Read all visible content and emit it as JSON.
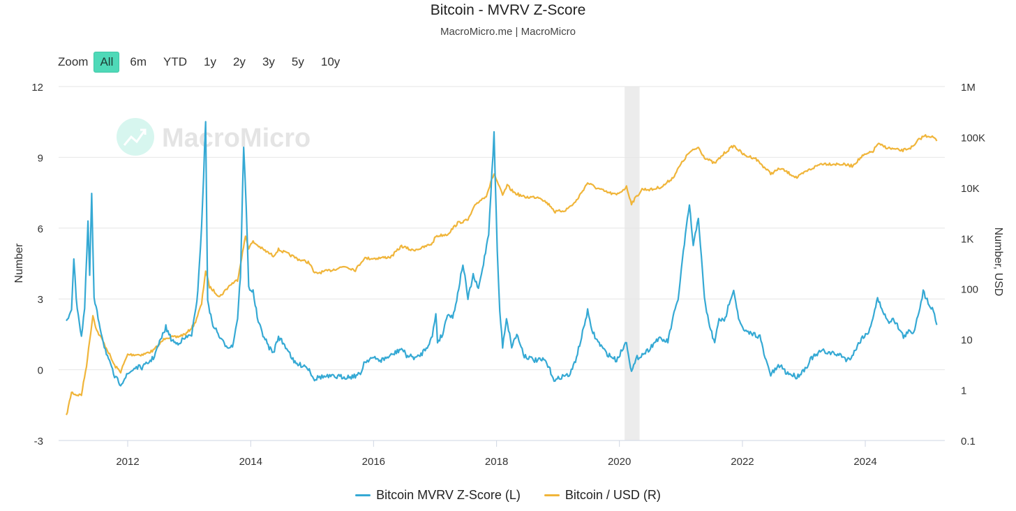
{
  "title": "Bitcoin - MVRV Z-Score",
  "subtitle": "MacroMicro.me | MacroMicro",
  "zoom": {
    "label": "Zoom",
    "buttons": [
      "All",
      "6m",
      "YTD",
      "1y",
      "2y",
      "3y",
      "5y",
      "10y"
    ],
    "active": "All"
  },
  "watermark": "MacroMicro",
  "colors": {
    "mvrv": "#35a9d4",
    "price": "#f0b53a",
    "grid": "#e6e6e6",
    "zoom_active": "#4fd9b8",
    "band": "#ececec"
  },
  "chart_data": {
    "type": "line",
    "x_ticks": [
      "2012",
      "2014",
      "2016",
      "2018",
      "2020",
      "2022",
      "2024"
    ],
    "y_left": {
      "label": "Number",
      "ticks": [
        "12",
        "9",
        "6",
        "3",
        "0",
        "-3"
      ],
      "range": [
        -3,
        12
      ]
    },
    "y_right": {
      "label": "Number, USD",
      "scale": "log",
      "ticks": [
        "1M",
        "100K",
        "10K",
        "1K",
        "100",
        "10",
        "1",
        "0.1"
      ],
      "range": [
        0.1,
        1000000
      ]
    },
    "shaded_band": [
      "2020-02-01",
      "2020-04-30"
    ],
    "grid": true,
    "legend_position": "bottom",
    "series": [
      {
        "name": "Bitcoin MVRV Z-Score (L)",
        "axis": "left",
        "points": [
          [
            "2011-01-01",
            2.0
          ],
          [
            "2011-02-01",
            2.6
          ],
          [
            "2011-02-15",
            4.7
          ],
          [
            "2011-03-01",
            3.0
          ],
          [
            "2011-04-01",
            1.4
          ],
          [
            "2011-04-20",
            2.6
          ],
          [
            "2011-05-10",
            6.2
          ],
          [
            "2011-05-20",
            4.0
          ],
          [
            "2011-06-01",
            7.4
          ],
          [
            "2011-06-15",
            3.0
          ],
          [
            "2011-07-15",
            2.0
          ],
          [
            "2011-08-15",
            1.0
          ],
          [
            "2011-09-15",
            0.3
          ],
          [
            "2011-10-15",
            -0.3
          ],
          [
            "2011-11-20",
            -0.6
          ],
          [
            "2012-01-01",
            -0.2
          ],
          [
            "2012-02-15",
            0.1
          ],
          [
            "2012-04-01",
            0.1
          ],
          [
            "2012-06-01",
            0.5
          ],
          [
            "2012-08-15",
            1.8
          ],
          [
            "2012-09-15",
            1.3
          ],
          [
            "2012-10-15",
            1.1
          ],
          [
            "2012-12-01",
            1.3
          ],
          [
            "2013-01-15",
            1.5
          ],
          [
            "2013-02-15",
            2.8
          ],
          [
            "2013-03-15",
            6.0
          ],
          [
            "2013-04-08",
            10.5
          ],
          [
            "2013-04-20",
            3.0
          ],
          [
            "2013-05-15",
            2.0
          ],
          [
            "2013-06-15",
            1.6
          ],
          [
            "2013-07-15",
            1.2
          ],
          [
            "2013-08-15",
            1.0
          ],
          [
            "2013-09-15",
            1.0
          ],
          [
            "2013-10-15",
            2.2
          ],
          [
            "2013-11-01",
            4.0
          ],
          [
            "2013-11-20",
            9.4
          ],
          [
            "2013-12-05",
            7.0
          ],
          [
            "2013-12-20",
            3.5
          ],
          [
            "2014-01-15",
            3.3
          ],
          [
            "2014-02-15",
            2.0
          ],
          [
            "2014-03-15",
            1.5
          ],
          [
            "2014-04-15",
            1.0
          ],
          [
            "2014-05-15",
            0.7
          ],
          [
            "2014-06-15",
            1.4
          ],
          [
            "2014-07-15",
            1.1
          ],
          [
            "2014-08-15",
            0.8
          ],
          [
            "2014-09-15",
            0.3
          ],
          [
            "2014-10-15",
            0.2
          ],
          [
            "2014-11-15",
            0.2
          ],
          [
            "2014-12-15",
            0.0
          ],
          [
            "2015-01-15",
            -0.4
          ],
          [
            "2015-02-15",
            -0.3
          ],
          [
            "2015-04-15",
            -0.3
          ],
          [
            "2015-06-15",
            -0.3
          ],
          [
            "2015-08-15",
            -0.3
          ],
          [
            "2015-10-15",
            -0.2
          ],
          [
            "2015-11-05",
            0.3
          ],
          [
            "2015-12-15",
            0.5
          ],
          [
            "2016-02-15",
            0.4
          ],
          [
            "2016-04-15",
            0.6
          ],
          [
            "2016-06-15",
            0.9
          ],
          [
            "2016-07-15",
            0.6
          ],
          [
            "2016-09-15",
            0.5
          ],
          [
            "2016-10-15",
            0.7
          ],
          [
            "2016-11-15",
            1.0
          ],
          [
            "2016-12-15",
            1.4
          ],
          [
            "2017-01-05",
            2.4
          ],
          [
            "2017-01-15",
            1.2
          ],
          [
            "2017-02-15",
            1.5
          ],
          [
            "2017-03-15",
            2.4
          ],
          [
            "2017-04-15",
            2.2
          ],
          [
            "2017-05-15",
            3.2
          ],
          [
            "2017-06-15",
            4.5
          ],
          [
            "2017-07-15",
            3.0
          ],
          [
            "2017-08-15",
            4.0
          ],
          [
            "2017-09-15",
            3.4
          ],
          [
            "2017-10-15",
            4.5
          ],
          [
            "2017-11-15",
            5.8
          ],
          [
            "2017-12-17",
            10.0
          ],
          [
            "2018-01-05",
            5.0
          ],
          [
            "2018-01-20",
            2.5
          ],
          [
            "2018-02-06",
            1.0
          ],
          [
            "2018-03-01",
            2.2
          ],
          [
            "2018-04-01",
            1.0
          ],
          [
            "2018-05-01",
            1.5
          ],
          [
            "2018-06-15",
            0.6
          ],
          [
            "2018-08-15",
            0.4
          ],
          [
            "2018-10-15",
            0.4
          ],
          [
            "2018-11-20",
            -0.1
          ],
          [
            "2018-12-15",
            -0.5
          ],
          [
            "2019-01-15",
            -0.3
          ],
          [
            "2019-03-15",
            -0.2
          ],
          [
            "2019-04-15",
            0.4
          ],
          [
            "2019-05-15",
            1.2
          ],
          [
            "2019-06-26",
            2.5
          ],
          [
            "2019-07-15",
            1.8
          ],
          [
            "2019-08-15",
            1.3
          ],
          [
            "2019-10-15",
            0.7
          ],
          [
            "2019-12-15",
            0.4
          ],
          [
            "2020-02-12",
            1.2
          ],
          [
            "2020-03-13",
            -0.1
          ],
          [
            "2020-04-15",
            0.5
          ],
          [
            "2020-06-15",
            0.8
          ],
          [
            "2020-08-15",
            1.3
          ],
          [
            "2020-10-15",
            1.2
          ],
          [
            "2020-11-15",
            2.2
          ],
          [
            "2020-12-15",
            3.0
          ],
          [
            "2021-01-15",
            5.0
          ],
          [
            "2021-02-20",
            7.0
          ],
          [
            "2021-03-15",
            5.2
          ],
          [
            "2021-04-14",
            6.5
          ],
          [
            "2021-05-20",
            3.0
          ],
          [
            "2021-06-15",
            2.0
          ],
          [
            "2021-07-20",
            1.1
          ],
          [
            "2021-08-15",
            2.2
          ],
          [
            "2021-09-15",
            2.0
          ],
          [
            "2021-10-20",
            3.0
          ],
          [
            "2021-11-10",
            3.4
          ],
          [
            "2021-12-15",
            2.0
          ],
          [
            "2022-01-15",
            1.6
          ],
          [
            "2022-03-15",
            1.5
          ],
          [
            "2022-04-15",
            1.4
          ],
          [
            "2022-05-15",
            0.5
          ],
          [
            "2022-06-18",
            -0.2
          ],
          [
            "2022-08-15",
            0.2
          ],
          [
            "2022-09-15",
            -0.1
          ],
          [
            "2022-11-21",
            -0.3
          ],
          [
            "2023-01-15",
            0.1
          ],
          [
            "2023-02-15",
            0.5
          ],
          [
            "2023-03-15",
            0.6
          ],
          [
            "2023-04-15",
            0.8
          ],
          [
            "2023-06-15",
            0.7
          ],
          [
            "2023-08-15",
            0.6
          ],
          [
            "2023-09-15",
            0.4
          ],
          [
            "2023-10-15",
            0.6
          ],
          [
            "2023-11-15",
            1.0
          ],
          [
            "2023-12-15",
            1.4
          ],
          [
            "2024-01-15",
            1.5
          ],
          [
            "2024-02-15",
            2.2
          ],
          [
            "2024-03-14",
            3.0
          ],
          [
            "2024-04-15",
            2.5
          ],
          [
            "2024-05-15",
            2.0
          ],
          [
            "2024-06-15",
            2.2
          ],
          [
            "2024-07-15",
            1.8
          ],
          [
            "2024-08-15",
            1.4
          ],
          [
            "2024-09-15",
            1.6
          ],
          [
            "2024-10-15",
            1.6
          ],
          [
            "2024-11-15",
            2.5
          ],
          [
            "2024-12-10",
            3.3
          ],
          [
            "2025-01-15",
            2.8
          ],
          [
            "2025-02-15",
            2.4
          ],
          [
            "2025-03-01",
            1.9
          ]
        ]
      },
      {
        "name": "Bitcoin / USD (R)",
        "axis": "right",
        "points": [
          [
            "2011-01-01",
            0.3
          ],
          [
            "2011-02-01",
            0.9
          ],
          [
            "2011-03-01",
            0.8
          ],
          [
            "2011-04-01",
            0.8
          ],
          [
            "2011-05-01",
            3.0
          ],
          [
            "2011-06-08",
            30
          ],
          [
            "2011-07-01",
            15
          ],
          [
            "2011-08-01",
            10
          ],
          [
            "2011-09-15",
            5
          ],
          [
            "2011-10-15",
            3
          ],
          [
            "2011-11-20",
            2.3
          ],
          [
            "2012-01-01",
            5
          ],
          [
            "2012-02-15",
            5
          ],
          [
            "2012-04-01",
            5
          ],
          [
            "2012-06-01",
            6
          ],
          [
            "2012-08-15",
            11
          ],
          [
            "2012-10-15",
            11
          ],
          [
            "2012-12-15",
            13
          ],
          [
            "2013-02-01",
            20
          ],
          [
            "2013-03-15",
            50
          ],
          [
            "2013-04-08",
            230
          ],
          [
            "2013-05-01",
            110
          ],
          [
            "2013-07-01",
            70
          ],
          [
            "2013-09-01",
            120
          ],
          [
            "2013-10-15",
            150
          ],
          [
            "2013-12-01",
            1100
          ],
          [
            "2013-12-20",
            650
          ],
          [
            "2014-01-15",
            850
          ],
          [
            "2014-03-15",
            600
          ],
          [
            "2014-05-15",
            450
          ],
          [
            "2014-06-15",
            600
          ],
          [
            "2014-08-15",
            480
          ],
          [
            "2014-10-15",
            380
          ],
          [
            "2014-12-15",
            330
          ],
          [
            "2015-01-15",
            200
          ],
          [
            "2015-04-15",
            230
          ],
          [
            "2015-07-15",
            280
          ],
          [
            "2015-09-15",
            235
          ],
          [
            "2015-11-05",
            400
          ],
          [
            "2016-01-15",
            400
          ],
          [
            "2016-04-15",
            430
          ],
          [
            "2016-06-15",
            700
          ],
          [
            "2016-08-15",
            580
          ],
          [
            "2016-10-15",
            640
          ],
          [
            "2016-12-15",
            790
          ],
          [
            "2017-01-05",
            1100
          ],
          [
            "2017-03-15",
            1200
          ],
          [
            "2017-05-15",
            2000
          ],
          [
            "2017-07-15",
            2300
          ],
          [
            "2017-09-01",
            4800
          ],
          [
            "2017-11-01",
            7000
          ],
          [
            "2017-12-17",
            19000
          ],
          [
            "2018-02-06",
            7000
          ],
          [
            "2018-03-05",
            11000
          ],
          [
            "2018-04-15",
            8000
          ],
          [
            "2018-06-15",
            6500
          ],
          [
            "2018-09-15",
            6500
          ],
          [
            "2018-11-20",
            4300
          ],
          [
            "2018-12-15",
            3300
          ],
          [
            "2019-02-15",
            3600
          ],
          [
            "2019-04-15",
            5200
          ],
          [
            "2019-06-26",
            12500
          ],
          [
            "2019-08-15",
            10000
          ],
          [
            "2019-10-15",
            8200
          ],
          [
            "2019-12-15",
            7200
          ],
          [
            "2020-02-12",
            10300
          ],
          [
            "2020-03-13",
            4900
          ],
          [
            "2020-05-15",
            9300
          ],
          [
            "2020-07-15",
            9200
          ],
          [
            "2020-09-15",
            10700
          ],
          [
            "2020-11-15",
            16000
          ],
          [
            "2020-12-31",
            29000
          ],
          [
            "2021-02-15",
            48000
          ],
          [
            "2021-04-14",
            63000
          ],
          [
            "2021-05-20",
            40000
          ],
          [
            "2021-07-20",
            30000
          ],
          [
            "2021-09-15",
            48000
          ],
          [
            "2021-11-10",
            68000
          ],
          [
            "2022-01-15",
            43000
          ],
          [
            "2022-03-15",
            39000
          ],
          [
            "2022-06-18",
            19000
          ],
          [
            "2022-08-15",
            24000
          ],
          [
            "2022-11-21",
            15800
          ],
          [
            "2023-01-15",
            21000
          ],
          [
            "2023-04-15",
            30000
          ],
          [
            "2023-08-15",
            29000
          ],
          [
            "2023-10-15",
            27000
          ],
          [
            "2023-12-15",
            42000
          ],
          [
            "2024-02-15",
            52000
          ],
          [
            "2024-03-14",
            73000
          ],
          [
            "2024-05-15",
            61000
          ],
          [
            "2024-08-05",
            54000
          ],
          [
            "2024-10-15",
            65000
          ],
          [
            "2024-11-15",
            90000
          ],
          [
            "2024-12-17",
            106000
          ],
          [
            "2025-01-20",
            105000
          ],
          [
            "2025-02-15",
            96000
          ],
          [
            "2025-03-01",
            84000
          ]
        ]
      }
    ]
  }
}
